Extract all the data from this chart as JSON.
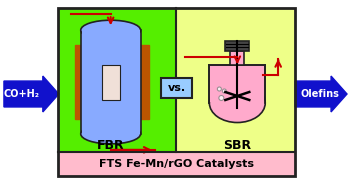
{
  "fig_width": 3.52,
  "fig_height": 1.89,
  "dpi": 100,
  "bg_color": "#ffffff",
  "green_bg": "#55ee00",
  "yellow_bg": "#eeff88",
  "pink_bottom": "#ffbbcc",
  "arrow_blue": "#1111cc",
  "arrow_red": "#cc0000",
  "reactor_blue_top": "#88aaff",
  "reactor_blue_body": "#88aaff",
  "reactor_pink": "#ffaacc",
  "reactor_brown": "#bb5500",
  "vs_box_color": "#99ccff",
  "label_fbr": "FBR",
  "label_sbr": "SBR",
  "label_left": "CO+H₂",
  "label_right": "Olefins",
  "label_bottom": "FTS Fe-Mn/rGO Catalysts",
  "label_vs": "vs.",
  "outline_color": "#222222",
  "inner_fill": "#f0e0d8",
  "white": "#ffffff",
  "dark_gray": "#444444"
}
